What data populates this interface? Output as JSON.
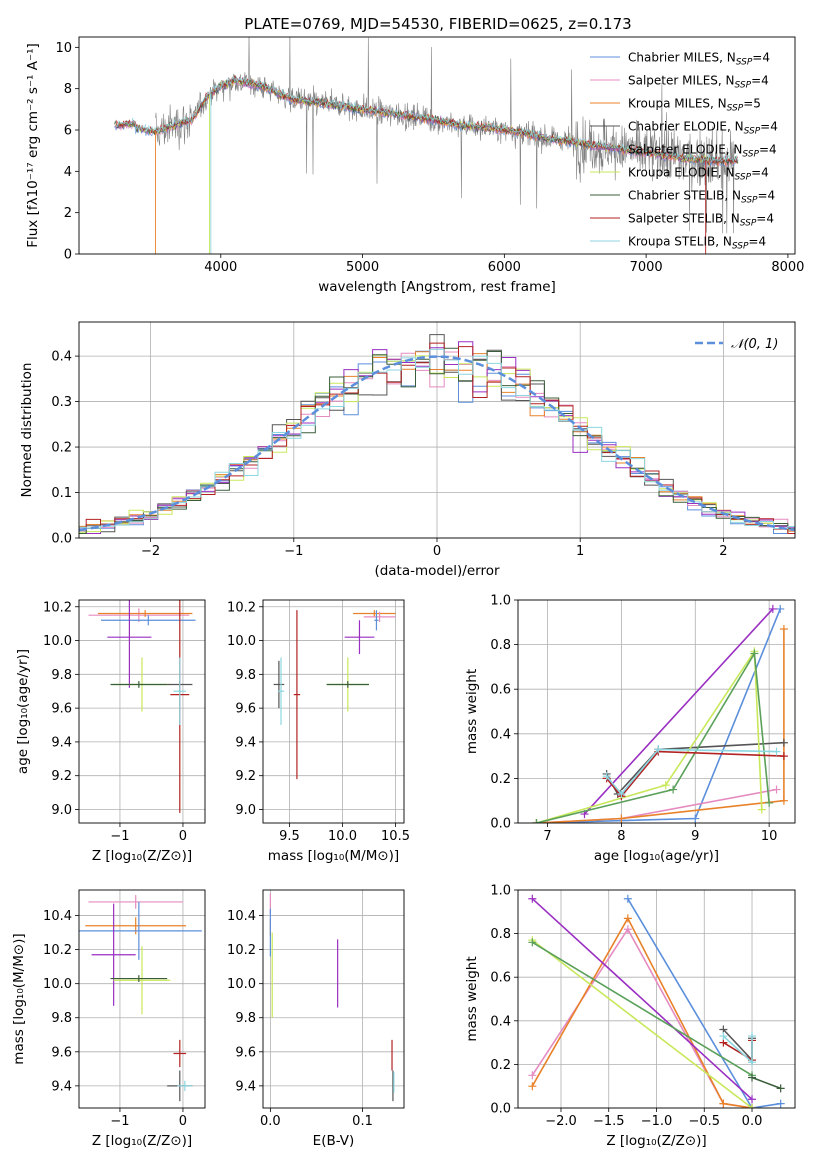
{
  "figure": {
    "title": "PLATE=0769, MJD=54530, FIBERID=0625, z=0.173"
  },
  "colors": {
    "chabrier_miles": "#5b8fdc",
    "salpeter_miles": "#e58bc0",
    "kroupa_miles": "#e8822a",
    "chabrier_elodie": "#555555",
    "salpeter_elodie": "#9b59b6",
    "kroupa_elodie": "#9a2fc2",
    "chabrier_stelib": "#3a5e3a",
    "salpeter_stelib": "#b22222",
    "kroupa_stelib": "#8cd6e0",
    "lime": "#c8e85a",
    "green": "#5aa05a",
    "gray_spectrum": "#808080",
    "normal_curve": "#5b8fdc"
  },
  "chart_data": [
    {
      "type": "line",
      "id": "spectrum",
      "xlabel": "wavelength [Angstrom, rest frame]",
      "ylabel": "Flux [fλ10⁻¹⁷ erg cm⁻² s⁻¹ A⁻¹]",
      "xlim": [
        3000,
        8050
      ],
      "ylim": [
        0,
        10.5
      ],
      "xticks": [
        4000,
        5000,
        6000,
        7000,
        8000
      ],
      "yticks": [
        0,
        2,
        4,
        6,
        8,
        10
      ],
      "grid": false,
      "legend_position": "top-right",
      "legend": [
        {
          "label": "Chabrier MILES, N",
          "sub": "SSP",
          "suffix": "=4",
          "color": "#5b8fdc"
        },
        {
          "label": "Salpeter MILES, N",
          "sub": "SSP",
          "suffix": "=4",
          "color": "#e58bc0"
        },
        {
          "label": "Kroupa MILES, N",
          "sub": "SSP",
          "suffix": "=5",
          "color": "#e8822a"
        },
        {
          "label": "Chabrier ELODIE, N",
          "sub": "SSP",
          "suffix": "=4",
          "color": "#555555"
        },
        {
          "label": "Salpeter ELODIE, N",
          "sub": "SSP",
          "suffix": "=4",
          "color": "#9b59b6"
        },
        {
          "label": "Kroupa ELODIE, N",
          "sub": "SSP",
          "suffix": "=4",
          "color": "#c8e85a"
        },
        {
          "label": "Chabrier STELIB, N",
          "sub": "SSP",
          "suffix": "=4",
          "color": "#3a5e3a"
        },
        {
          "label": "Salpeter STELIB, N",
          "sub": "SSP",
          "suffix": "=4",
          "color": "#b22222"
        },
        {
          "label": "Kroupa STELIB, N",
          "sub": "SSP",
          "suffix": "=4",
          "color": "#8cd6e0"
        }
      ],
      "continuum": {
        "x": [
          3250,
          3400,
          3550,
          3700,
          3800,
          3900,
          4000,
          4100,
          4300,
          4500,
          4700,
          4900,
          5100,
          5300,
          5500,
          5700,
          5900,
          6100,
          6300,
          6500,
          6700,
          6900,
          7100,
          7300,
          7500
        ],
        "y": [
          6.0,
          6.1,
          5.9,
          6.3,
          6.5,
          7.6,
          8.1,
          8.4,
          8.1,
          7.5,
          7.3,
          7.1,
          6.9,
          6.7,
          6.5,
          6.2,
          6.1,
          5.9,
          5.6,
          5.4,
          5.2,
          5.0,
          4.8,
          4.6,
          4.5
        ]
      }
    },
    {
      "type": "line",
      "id": "residual_histogram",
      "xlabel": "(data-model)/error",
      "ylabel": "Normed distribution",
      "xlim": [
        -2.5,
        2.5
      ],
      "ylim": [
        0,
        0.475
      ],
      "xticks": [
        -2,
        -1,
        0,
        1,
        2
      ],
      "yticks": [
        0.0,
        0.1,
        0.2,
        0.3,
        0.4
      ],
      "grid": true,
      "legend_label": "𝒩(0, 1)",
      "legend_position": "top-right"
    },
    {
      "type": "scatter",
      "id": "age_vs_Z",
      "xlabel": "Z [log₁₀(Z/Z⊙)]",
      "ylabel": "age  [log₁₀(age/yr)]",
      "xlim": [
        -1.65,
        0.35
      ],
      "ylim": [
        8.92,
        10.24
      ],
      "xticks": [
        -1,
        0
      ],
      "yticks": [
        9.0,
        9.2,
        9.4,
        9.6,
        9.8,
        10.0,
        10.2
      ],
      "grid": true,
      "points": [
        {
          "x": -0.7,
          "y": 10.15,
          "xerr": 0.8,
          "yerr": 0.04,
          "color": "#e58bc0"
        },
        {
          "x": -0.6,
          "y": 10.16,
          "xerr": 0.75,
          "yerr": 0.02,
          "color": "#e8822a"
        },
        {
          "x": -0.55,
          "y": 10.12,
          "xerr": 0.75,
          "yerr": 0.03,
          "color": "#5b8fdc"
        },
        {
          "x": -0.85,
          "y": 10.02,
          "xerr": 0.35,
          "yerr": 0.3,
          "color": "#9a2fc2"
        },
        {
          "x": -0.65,
          "y": 9.74,
          "xerr": 0.45,
          "yerr": 0.16,
          "color": "#c8e85a"
        },
        {
          "x": -0.7,
          "y": 9.74,
          "xerr": 0.45,
          "yerr": 0.02,
          "color": "#3a5e3a"
        },
        {
          "x": -0.05,
          "y": 9.74,
          "xerr": 0.2,
          "yerr": 0.02,
          "color": "#555555"
        },
        {
          "x": -0.05,
          "y": 9.68,
          "xerr": 0.15,
          "yerr": 0.7,
          "color": "#b22222"
        },
        {
          "x": -0.05,
          "y": 9.7,
          "xerr": 0.1,
          "yerr": 0.2,
          "color": "#8cd6e0"
        }
      ]
    },
    {
      "type": "scatter",
      "id": "age_vs_mass",
      "xlabel": "mass [log₁₀(M/M⊙)]",
      "ylabel": "",
      "xlim": [
        9.25,
        10.58
      ],
      "ylim": [
        8.92,
        10.24
      ],
      "xticks": [
        9.5,
        10.0,
        10.5
      ],
      "yticks": [
        9.0,
        9.2,
        9.4,
        9.6,
        9.8,
        10.0,
        10.2
      ],
      "grid": true,
      "points": [
        {
          "x": 10.3,
          "y": 10.16,
          "xerr": 0.2,
          "yerr": 0.02,
          "color": "#e8822a"
        },
        {
          "x": 10.35,
          "y": 10.14,
          "xerr": 0.15,
          "yerr": 0.03,
          "color": "#e58bc0"
        },
        {
          "x": 10.32,
          "y": 10.12,
          "xerr": 0.02,
          "yerr": 0.06,
          "color": "#5b8fdc"
        },
        {
          "x": 10.16,
          "y": 10.02,
          "xerr": 0.14,
          "yerr": 0.1,
          "color": "#9a2fc2"
        },
        {
          "x": 10.05,
          "y": 9.74,
          "xerr": 0.2,
          "yerr": 0.16,
          "color": "#c8e85a"
        },
        {
          "x": 10.05,
          "y": 9.74,
          "xerr": 0.2,
          "yerr": 0.02,
          "color": "#3a5e3a"
        },
        {
          "x": 9.4,
          "y": 9.74,
          "xerr": 0.05,
          "yerr": 0.14,
          "color": "#555555"
        },
        {
          "x": 9.57,
          "y": 9.68,
          "xerr": 0.03,
          "yerr": 0.5,
          "color": "#b22222"
        },
        {
          "x": 9.42,
          "y": 9.7,
          "xerr": 0.03,
          "yerr": 0.2,
          "color": "#8cd6e0"
        }
      ]
    },
    {
      "type": "line",
      "id": "massweight_vs_age",
      "xlabel": "age  [log₁₀(age/yr)]",
      "ylabel": "mass weight",
      "xlim": [
        6.6,
        10.35
      ],
      "ylim": [
        0,
        1.0
      ],
      "xticks": [
        7,
        8,
        9,
        10
      ],
      "yticks": [
        0.0,
        0.2,
        0.4,
        0.6,
        0.8,
        1.0
      ],
      "grid": true,
      "series": [
        {
          "color": "#5b8fdc",
          "x": [
            6.85,
            9.0,
            10.15
          ],
          "y": [
            0.0,
            0.02,
            0.96
          ]
        },
        {
          "color": "#e58bc0",
          "x": [
            6.85,
            8.0,
            10.1
          ],
          "y": [
            0.0,
            0.02,
            0.15
          ]
        },
        {
          "color": "#e8822a",
          "x": [
            6.85,
            8.0,
            10.2,
            10.2
          ],
          "y": [
            0.0,
            0.02,
            0.1,
            0.87
          ]
        },
        {
          "color": "#555555",
          "x": [
            7.8,
            7.95,
            8.5,
            10.2
          ],
          "y": [
            0.22,
            0.13,
            0.33,
            0.36
          ]
        },
        {
          "color": "#9a2fc2",
          "x": [
            7.5,
            10.05
          ],
          "y": [
            0.04,
            0.96
          ]
        },
        {
          "color": "#c8e85a",
          "x": [
            6.85,
            8.6,
            9.8,
            9.9
          ],
          "y": [
            0.0,
            0.17,
            0.77,
            0.06
          ]
        },
        {
          "color": "#5aa05a",
          "x": [
            6.85,
            8.7,
            9.8,
            10.0
          ],
          "y": [
            0.0,
            0.15,
            0.76,
            0.09
          ]
        },
        {
          "color": "#b22222",
          "x": [
            7.8,
            8.0,
            8.5,
            10.2
          ],
          "y": [
            0.2,
            0.12,
            0.32,
            0.3
          ]
        },
        {
          "color": "#8cd6e0",
          "x": [
            7.8,
            8.0,
            8.5,
            10.1
          ],
          "y": [
            0.21,
            0.13,
            0.33,
            0.32
          ]
        }
      ]
    },
    {
      "type": "scatter",
      "id": "mass_vs_Z",
      "xlabel": "Z [log₁₀(Z/Z⊙)]",
      "ylabel": "mass [log₁₀(M/M⊙)]",
      "xlim": [
        -1.65,
        0.35
      ],
      "ylim": [
        9.27,
        10.55
      ],
      "xticks": [
        -1,
        0
      ],
      "yticks": [
        9.4,
        9.6,
        9.8,
        10.0,
        10.2,
        10.4
      ],
      "grid": true,
      "points": [
        {
          "x": -0.75,
          "y": 10.48,
          "xerr": 0.75,
          "yerr": 0.04,
          "color": "#e58bc0"
        },
        {
          "x": -0.75,
          "y": 10.34,
          "xerr": 0.8,
          "yerr": 0.05,
          "color": "#e8822a"
        },
        {
          "x": -0.7,
          "y": 10.31,
          "xerr": 1.0,
          "yerr": 0.17,
          "color": "#5b8fdc"
        },
        {
          "x": -1.1,
          "y": 10.17,
          "xerr": 0.35,
          "yerr": 0.3,
          "color": "#9a2fc2"
        },
        {
          "x": -0.65,
          "y": 10.02,
          "xerr": 0.45,
          "yerr": 0.2,
          "color": "#c8e85a"
        },
        {
          "x": -0.7,
          "y": 10.03,
          "xerr": 0.45,
          "yerr": 0.02,
          "color": "#3a5e3a"
        },
        {
          "x": -0.05,
          "y": 9.59,
          "xerr": 0.1,
          "yerr": 0.08,
          "color": "#b22222"
        },
        {
          "x": -0.05,
          "y": 9.4,
          "xerr": 0.2,
          "yerr": 0.09,
          "color": "#555555"
        },
        {
          "x": 0.03,
          "y": 9.4,
          "xerr": 0.12,
          "yerr": 0.03,
          "color": "#8cd6e0"
        }
      ]
    },
    {
      "type": "scatter",
      "id": "mass_vs_EBV",
      "xlabel": "E(B-V)",
      "ylabel": "",
      "xlim": [
        -0.008,
        0.145
      ],
      "ylim": [
        9.27,
        10.55
      ],
      "xticks": [
        0.0,
        0.1
      ],
      "yticks": [
        9.4,
        9.6,
        9.8,
        10.0,
        10.2,
        10.4
      ],
      "grid": true,
      "points": [
        {
          "x": 0.0,
          "y": 10.47,
          "yerr": 0.06,
          "color": "#e58bc0"
        },
        {
          "x": 0.0,
          "y": 10.33,
          "yerr": 0.05,
          "color": "#e8822a"
        },
        {
          "x": 0.0,
          "y": 10.3,
          "yerr": 0.14,
          "color": "#5b8fdc"
        },
        {
          "x": 0.073,
          "y": 10.06,
          "yerr": 0.2,
          "color": "#9a2fc2"
        },
        {
          "x": 0.002,
          "y": 10.05,
          "yerr": 0.25,
          "color": "#c8e85a"
        },
        {
          "x": 0.132,
          "y": 9.58,
          "yerr": 0.09,
          "color": "#b22222"
        },
        {
          "x": 0.133,
          "y": 9.4,
          "yerr": 0.09,
          "color": "#555555"
        },
        {
          "x": 0.134,
          "y": 9.42,
          "yerr": 0.06,
          "color": "#8cd6e0"
        }
      ]
    },
    {
      "type": "line",
      "id": "massweight_vs_Z",
      "xlabel": "Z [log₁₀(Z/Z⊙)]",
      "ylabel": "mass weight",
      "xlim": [
        -2.45,
        0.45
      ],
      "ylim": [
        0,
        1.0
      ],
      "xticks": [
        -2.0,
        -1.5,
        -1.0,
        -0.5,
        0.0
      ],
      "yticks": [
        0.0,
        0.2,
        0.4,
        0.6,
        0.8,
        1.0
      ],
      "grid": true,
      "series": [
        {
          "color": "#5b8fdc",
          "x": [
            -1.3,
            0.0,
            0.3
          ],
          "y": [
            0.96,
            0.0,
            0.02
          ]
        },
        {
          "color": "#e58bc0",
          "x": [
            -2.3,
            -1.3,
            -0.3,
            0.0
          ],
          "y": [
            0.15,
            0.82,
            0.02,
            0.0
          ]
        },
        {
          "color": "#e8822a",
          "x": [
            -2.3,
            -1.3,
            -0.3,
            0.0
          ],
          "y": [
            0.1,
            0.87,
            0.02,
            0.0
          ]
        },
        {
          "color": "#555555",
          "x": [
            -0.3,
            0.0,
            0.0
          ],
          "y": [
            0.36,
            0.22,
            0.32
          ]
        },
        {
          "color": "#9a2fc2",
          "x": [
            -2.3,
            0.0
          ],
          "y": [
            0.96,
            0.04
          ]
        },
        {
          "color": "#c8e85a",
          "x": [
            -2.3,
            0.0
          ],
          "y": [
            0.77,
            0.0
          ]
        },
        {
          "color": "#5aa05a",
          "x": [
            -2.3,
            0.0
          ],
          "y": [
            0.76,
            0.15
          ]
        },
        {
          "color": "#3a5e3a",
          "x": [
            0.0,
            0.3
          ],
          "y": [
            0.14,
            0.09
          ]
        },
        {
          "color": "#b22222",
          "x": [
            -0.3,
            0.0,
            0.0
          ],
          "y": [
            0.3,
            0.22,
            0.31
          ]
        },
        {
          "color": "#8cd6e0",
          "x": [
            -0.3,
            0.0,
            0.0
          ],
          "y": [
            0.33,
            0.21,
            0.33
          ]
        }
      ]
    }
  ]
}
